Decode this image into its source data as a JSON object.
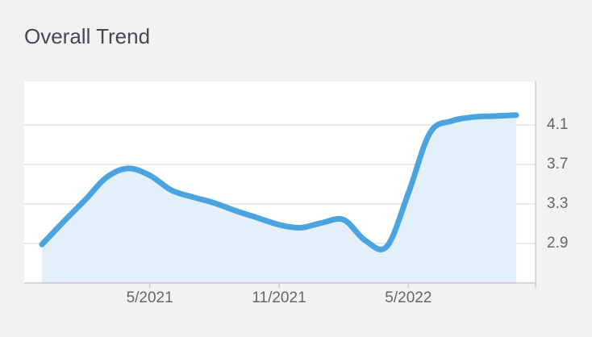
{
  "chart_data": {
    "type": "area",
    "title": "Overall Trend",
    "categories": [
      null,
      null,
      null,
      null,
      null,
      "5/2021",
      null,
      null,
      null,
      null,
      null,
      "11/2021",
      null,
      null,
      null,
      null,
      null,
      "5/2022",
      null,
      null,
      null,
      null,
      null
    ],
    "values": [
      2.89,
      3.12,
      3.34,
      3.57,
      3.66,
      3.59,
      3.44,
      3.37,
      3.31,
      3.23,
      3.16,
      3.09,
      3.06,
      3.11,
      3.14,
      2.93,
      2.87,
      3.41,
      4.02,
      4.14,
      4.18,
      4.19,
      4.2
    ],
    "color": "#4ba3df",
    "fill_color": "#e3eff9",
    "ylim": [
      2.5,
      4.5
    ],
    "yticks": [
      2.9,
      3.3,
      3.7,
      4.1
    ],
    "grid": true
  }
}
